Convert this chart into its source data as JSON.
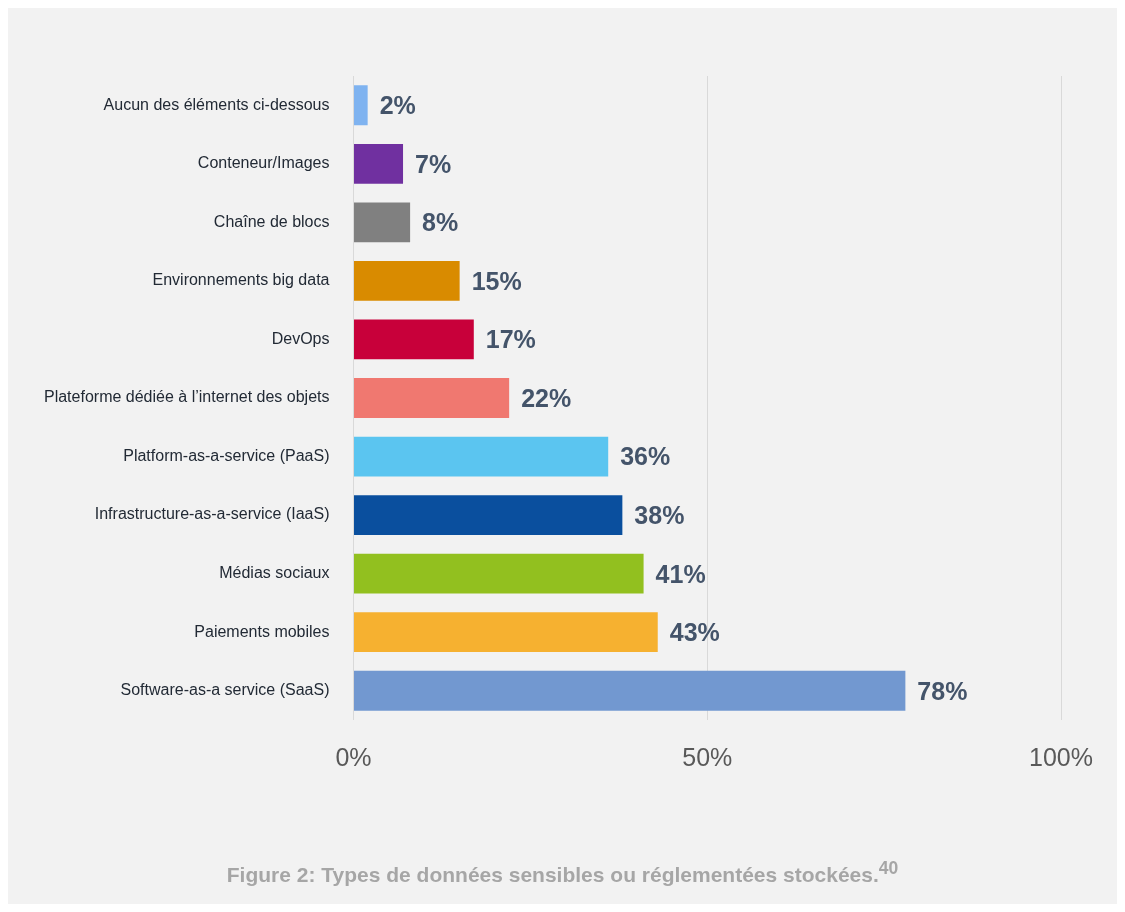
{
  "chart_data": {
    "type": "bar",
    "orientation": "horizontal",
    "categories": [
      "Aucun des éléments ci-dessous",
      "Conteneur/Images",
      "Chaîne de blocs",
      "Environnements big data",
      "DevOps",
      "Plateforme dédiée à l’internet des objets",
      "Platform-as-a-service (PaaS)",
      "Infrastructure-as-a-service (IaaS)",
      "Médias sociaux",
      "Paiements mobiles",
      "Software-as-a service (SaaS)"
    ],
    "values": [
      2,
      7,
      8,
      15,
      17,
      22,
      36,
      38,
      41,
      43,
      78
    ],
    "colors": [
      "#7fb3f0",
      "#7030a0",
      "#808080",
      "#d98b00",
      "#c8003a",
      "#f07870",
      "#5bc5f0",
      "#0a4f9e",
      "#92c01f",
      "#f6b130",
      "#7298d0"
    ],
    "value_labels": [
      "2%",
      "7%",
      "8%",
      "15%",
      "17%",
      "22%",
      "36%",
      "38%",
      "41%",
      "43%",
      "78%"
    ],
    "xlim": [
      0,
      100
    ],
    "xticks": [
      {
        "value": 0,
        "label": "0%"
      },
      {
        "value": 50,
        "label": "50%"
      },
      {
        "value": 100,
        "label": "100%"
      }
    ],
    "grid": "x",
    "legend": false,
    "annotations": [
      "Figure 2: Types de données sensibles ou réglementées stockées.$^{40}$"
    ]
  }
}
